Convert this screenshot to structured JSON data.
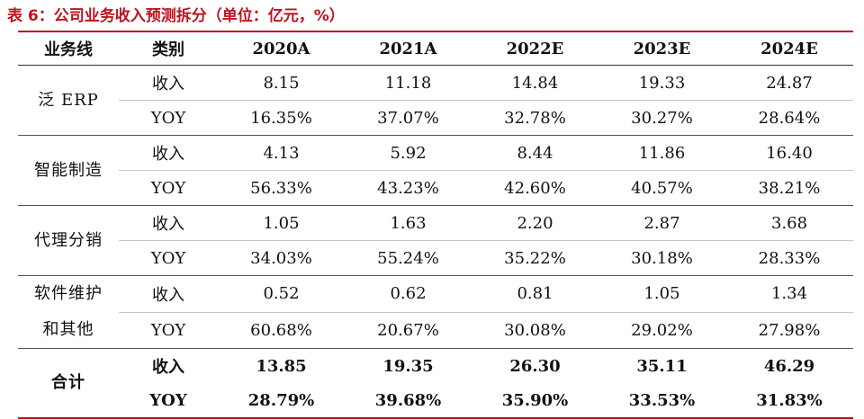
{
  "title": "表 6：公司业务收入预测拆分（单位：亿元，%）",
  "headers": [
    "业务线",
    "类别",
    "2020A",
    "2021A",
    "2022E",
    "2023E",
    "2024E"
  ],
  "groups": [
    {
      "segment": "泛 ERP",
      "rows": [
        {
          "type": "收入",
          "values": [
            "8.15",
            "11.18",
            "14.84",
            "19.33",
            "24.87"
          ]
        },
        {
          "type": "YOY",
          "values": [
            "16.35%",
            "37.07%",
            "32.78%",
            "30.27%",
            "28.64%"
          ]
        }
      ]
    },
    {
      "segment": "智能制造",
      "rows": [
        {
          "type": "收入",
          "values": [
            "4.13",
            "5.92",
            "8.44",
            "11.86",
            "16.40"
          ]
        },
        {
          "type": "YOY",
          "values": [
            "56.33%",
            "43.23%",
            "42.60%",
            "40.57%",
            "38.21%"
          ]
        }
      ]
    },
    {
      "segment": "代理分销",
      "rows": [
        {
          "type": "收入",
          "values": [
            "1.05",
            "1.63",
            "2.20",
            "2.87",
            "3.68"
          ]
        },
        {
          "type": "YOY",
          "values": [
            "34.03%",
            "55.24%",
            "35.22%",
            "30.18%",
            "28.33%"
          ]
        }
      ]
    },
    {
      "segment_line1": "软件维护",
      "segment_line2": "和其他",
      "rows": [
        {
          "type": "收入",
          "values": [
            "0.52",
            "0.62",
            "0.81",
            "1.05",
            "1.34"
          ]
        },
        {
          "type": "YOY",
          "values": [
            "60.68%",
            "20.67%",
            "30.08%",
            "29.02%",
            "27.98%"
          ]
        }
      ]
    },
    {
      "segment": "合计",
      "rows": [
        {
          "type": "收入",
          "values": [
            "13.85",
            "19.35",
            "26.30",
            "35.11",
            "46.29"
          ]
        },
        {
          "type": "YOY",
          "values": [
            "28.79%",
            "39.68%",
            "35.90%",
            "33.53%",
            "31.83%"
          ]
        }
      ]
    }
  ],
  "colors": {
    "accent": "#c0121f"
  }
}
